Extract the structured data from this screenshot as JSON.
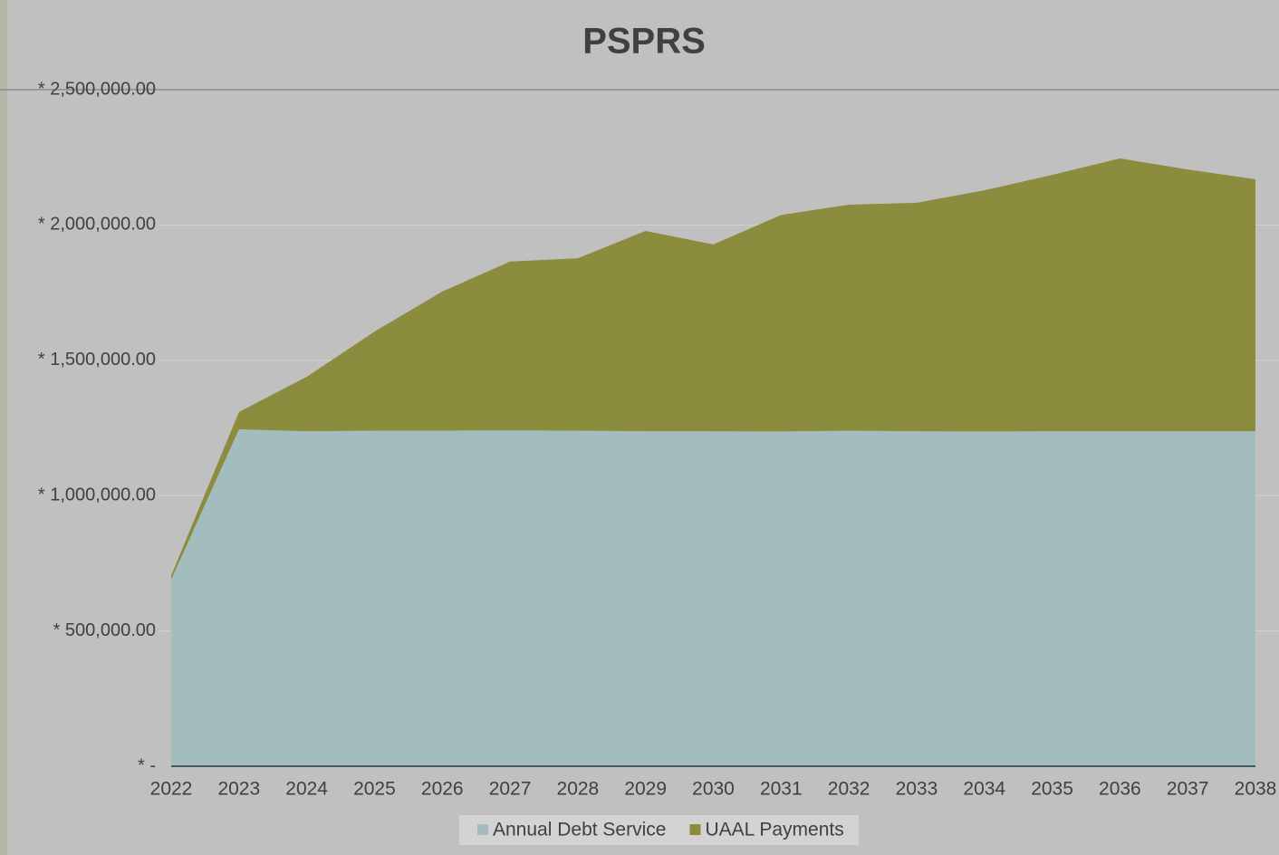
{
  "chart_data": {
    "type": "stacked_area",
    "title": "PSPRS",
    "x": [
      2022,
      2023,
      2024,
      2025,
      2026,
      2027,
      2028,
      2029,
      2030,
      2031,
      2032,
      2033,
      2034,
      2035,
      2036,
      2037,
      2038
    ],
    "xlim": [
      2022,
      2038
    ],
    "series": [
      {
        "name": "Annual Debt Service",
        "color": "#a3bcbd",
        "values": [
          690000,
          1245000,
          1238000,
          1240000,
          1240000,
          1241000,
          1240000,
          1238000,
          1238000,
          1237000,
          1240000,
          1238000,
          1237000,
          1238000,
          1238000,
          1238000,
          1238000
        ]
      },
      {
        "name": "UAAL Payments",
        "color": "#8c8c3f",
        "values": [
          15000,
          64000,
          201000,
          366000,
          514000,
          624000,
          637000,
          740000,
          690000,
          800000,
          835000,
          844000,
          891000,
          947000,
          1008000,
          967000,
          931000
        ]
      }
    ],
    "ylim": [
      0,
      2500000
    ],
    "yticks": [
      {
        "value": 0,
        "label": "* -"
      },
      {
        "value": 500000,
        "label": "* 500,000.00"
      },
      {
        "value": 1000000,
        "label": "* 1,000,000.00"
      },
      {
        "value": 1500000,
        "label": "* 1,500,000.00"
      },
      {
        "value": 2000000,
        "label": "* 2,000,000.00"
      },
      {
        "value": 2500000,
        "label": "* 2,500,000.00"
      }
    ],
    "grid": true,
    "legend": "bottom"
  }
}
